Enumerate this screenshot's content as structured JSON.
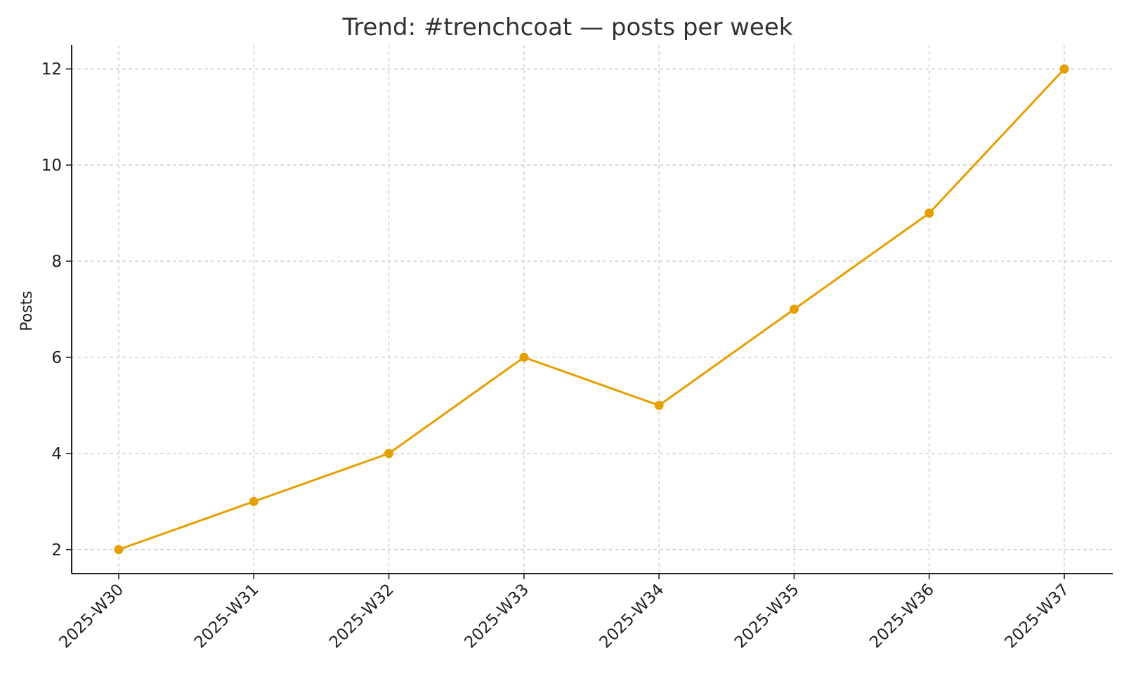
{
  "chart_data": {
    "type": "line",
    "title": "Trend: #trenchcoat — posts per week",
    "xlabel": "",
    "ylabel": "Posts",
    "categories": [
      "2025-W30",
      "2025-W31",
      "2025-W32",
      "2025-W33",
      "2025-W34",
      "2025-W35",
      "2025-W36",
      "2025-W37"
    ],
    "series": [
      {
        "values": [
          2,
          3,
          4,
          6,
          5,
          7,
          9,
          12
        ]
      }
    ],
    "ylim": [
      1.5,
      12.5
    ],
    "yticks": [
      2,
      4,
      6,
      8,
      10,
      12
    ],
    "grid": true,
    "line_color": "#E69F00",
    "text_color": "#222222",
    "grid_color": "#c8c8c8"
  }
}
